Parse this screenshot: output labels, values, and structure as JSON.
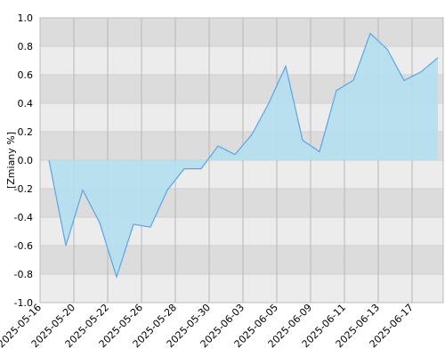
{
  "chart_data": {
    "type": "area",
    "y_label": "[Zmiany %]",
    "categories": [
      "2025-05-16",
      null,
      "2025-05-20",
      null,
      "2025-05-22",
      null,
      "2025-05-26",
      null,
      "2025-05-28",
      null,
      "2025-05-30",
      null,
      "2025-06-03",
      null,
      "2025-06-05",
      null,
      "2025-06-09",
      null,
      "2025-06-11",
      null,
      "2025-06-13",
      null,
      "2025-06-17",
      null
    ],
    "values": [
      0.0,
      -0.6,
      -0.21,
      -0.44,
      -0.82,
      -0.45,
      -0.47,
      -0.21,
      -0.06,
      -0.06,
      0.1,
      0.04,
      0.18,
      0.4,
      0.66,
      0.14,
      0.06,
      0.49,
      0.56,
      0.89,
      0.78,
      0.56,
      0.62,
      0.72
    ],
    "color": "#5aa5e6",
    "fill": "#b3dff0",
    "ylim": [
      -1,
      1
    ],
    "yticks": [
      {
        "value": -1,
        "label": "-1.0"
      },
      -0.8,
      -0.6,
      -0.4,
      -0.2,
      {
        "value": 0,
        "label": "0.0"
      },
      0.2,
      0.4,
      0.6,
      0.8,
      {
        "value": 1,
        "label": "1.0"
      }
    ],
    "grid": true
  }
}
